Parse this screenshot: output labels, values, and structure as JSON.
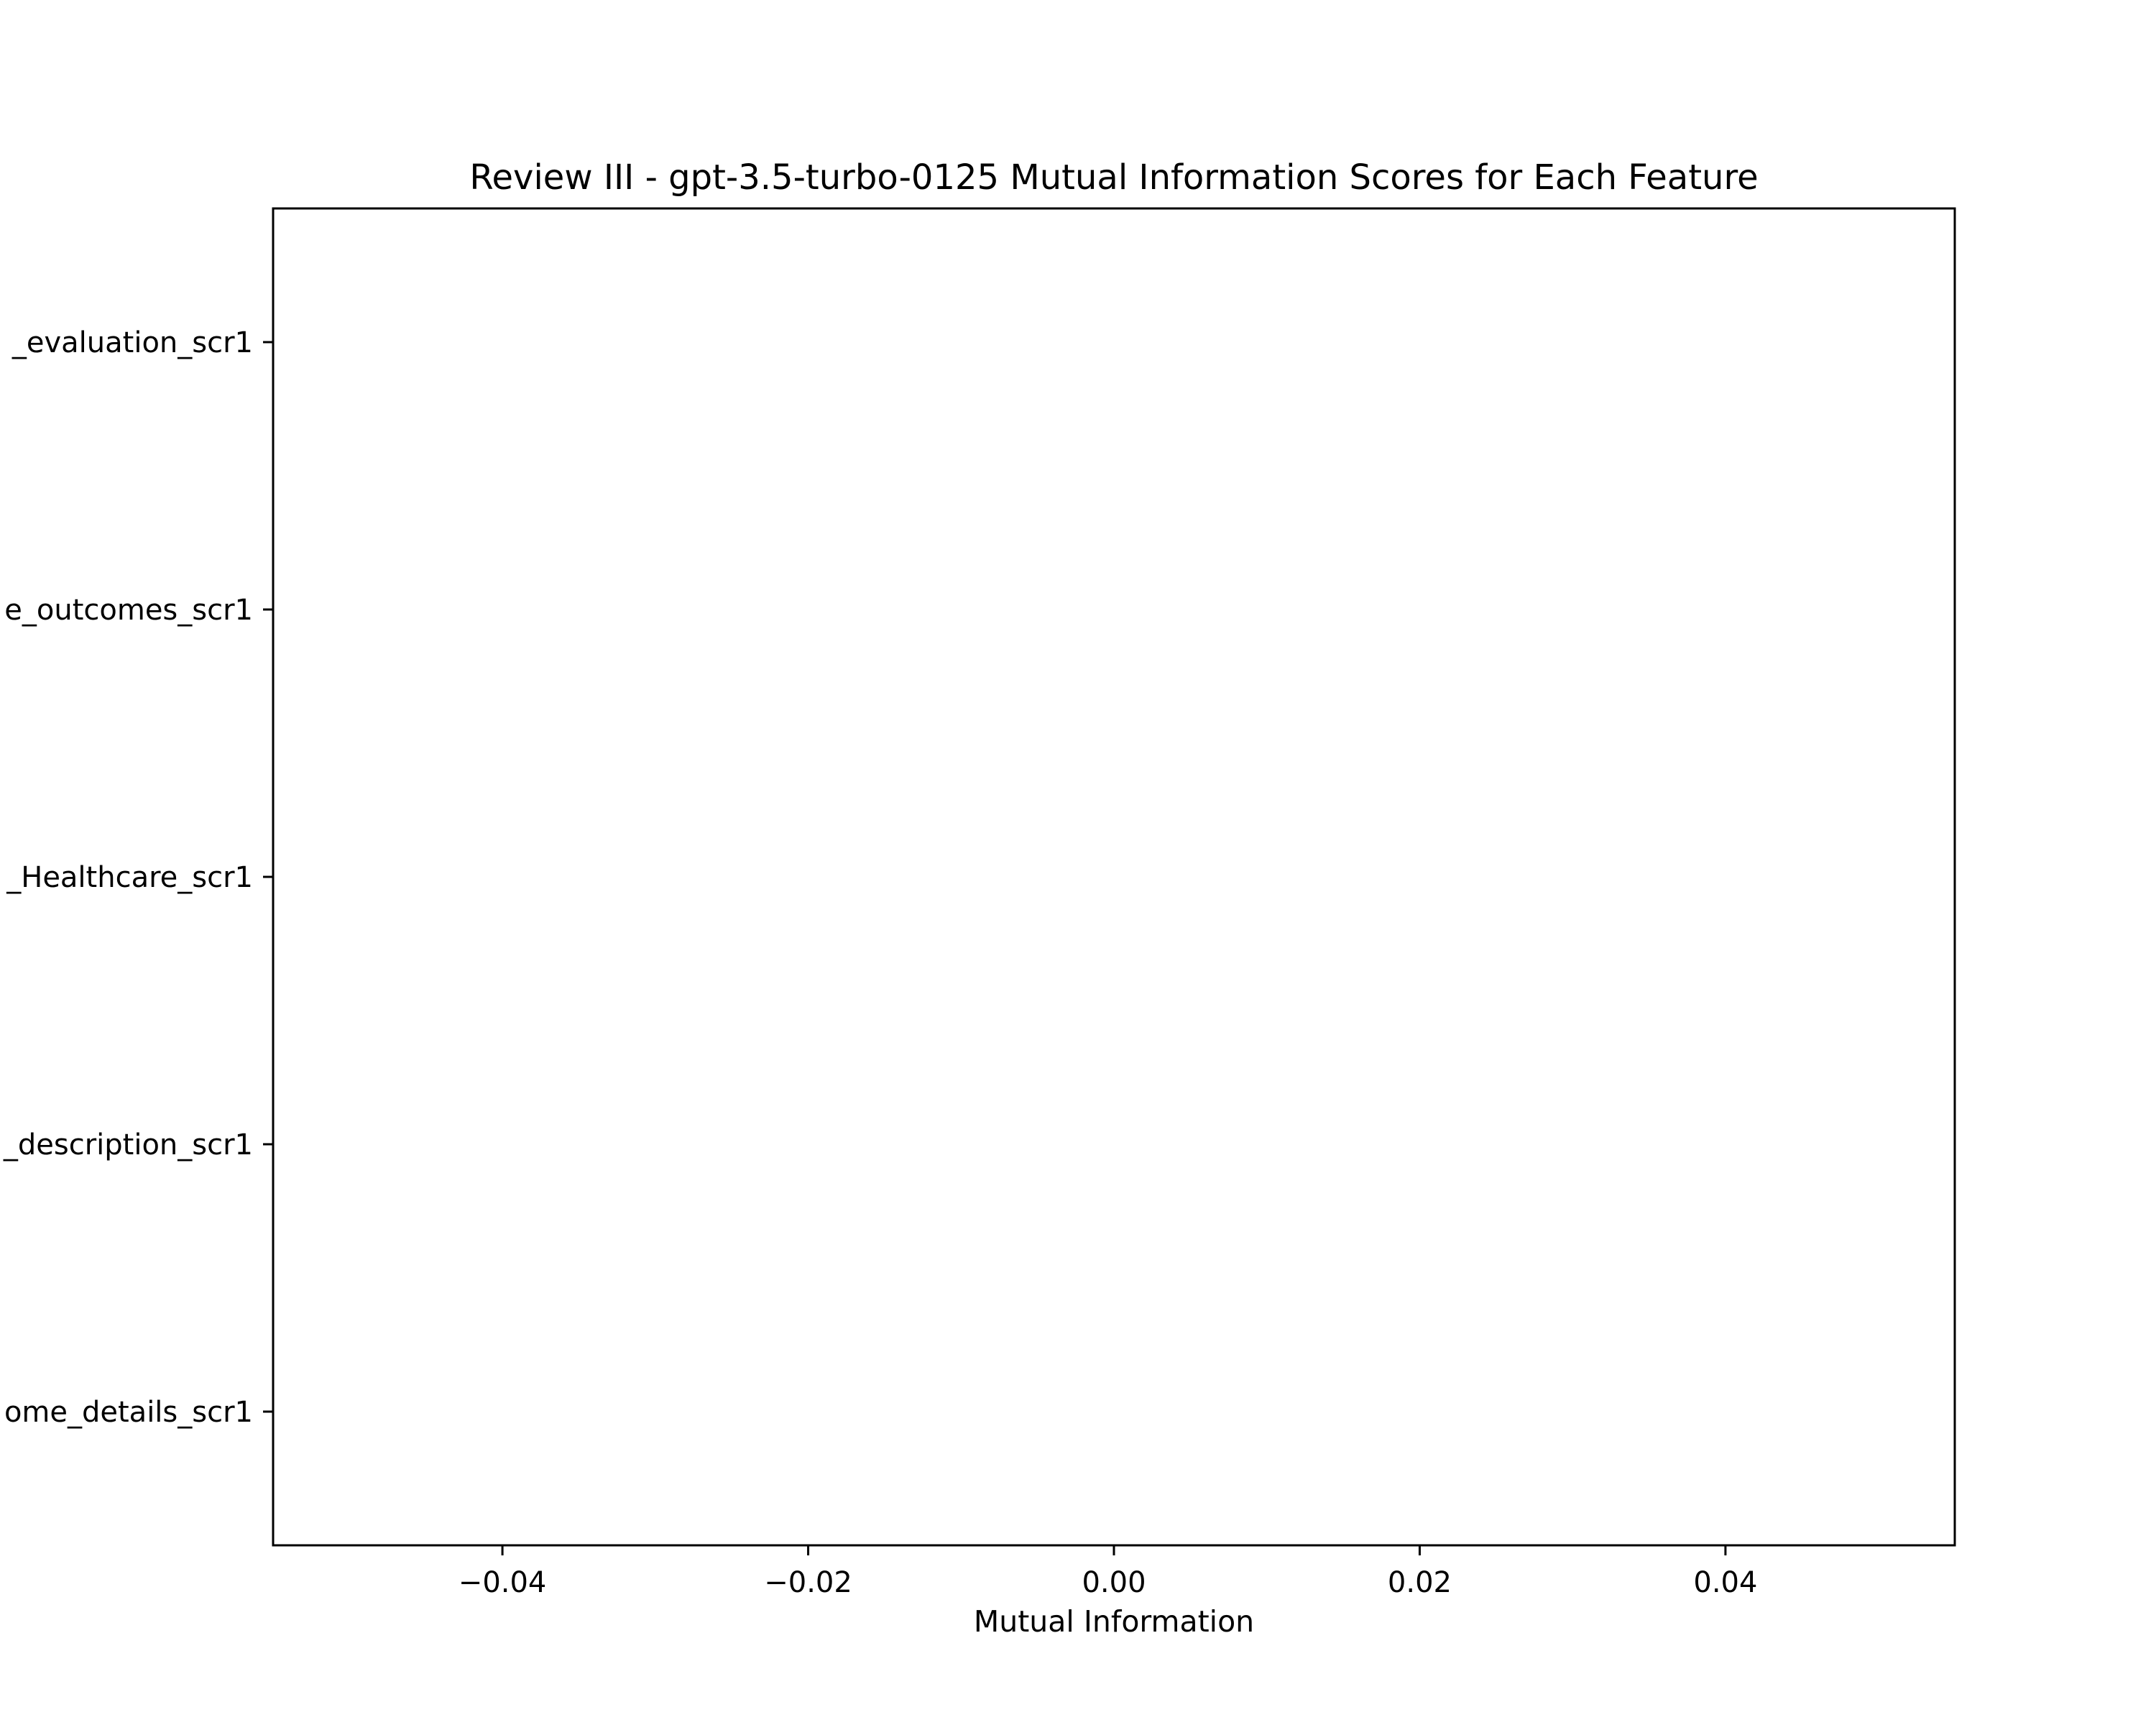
{
  "chart_data": {
    "type": "bar",
    "orientation": "horizontal",
    "title": "Review III - gpt-3.5-turbo-0125 Mutual Information Scores for Each Feature",
    "xlabel": "Mutual Information",
    "ylabel": "",
    "xlim": [
      -0.055,
      0.055
    ],
    "xticks": [
      -0.04,
      -0.02,
      0.0,
      0.02,
      0.04
    ],
    "xtick_labels": [
      "−0.04",
      "−0.02",
      "0.00",
      "0.02",
      "0.04"
    ],
    "categories": [
      "_evaluation_scr1",
      "e_outcomes_scr1",
      "_Healthcare_scr1",
      "_description_scr1",
      "ome_details_scr1"
    ],
    "values": [
      0,
      0,
      0,
      0,
      0
    ],
    "grid": false,
    "legend": "none"
  }
}
